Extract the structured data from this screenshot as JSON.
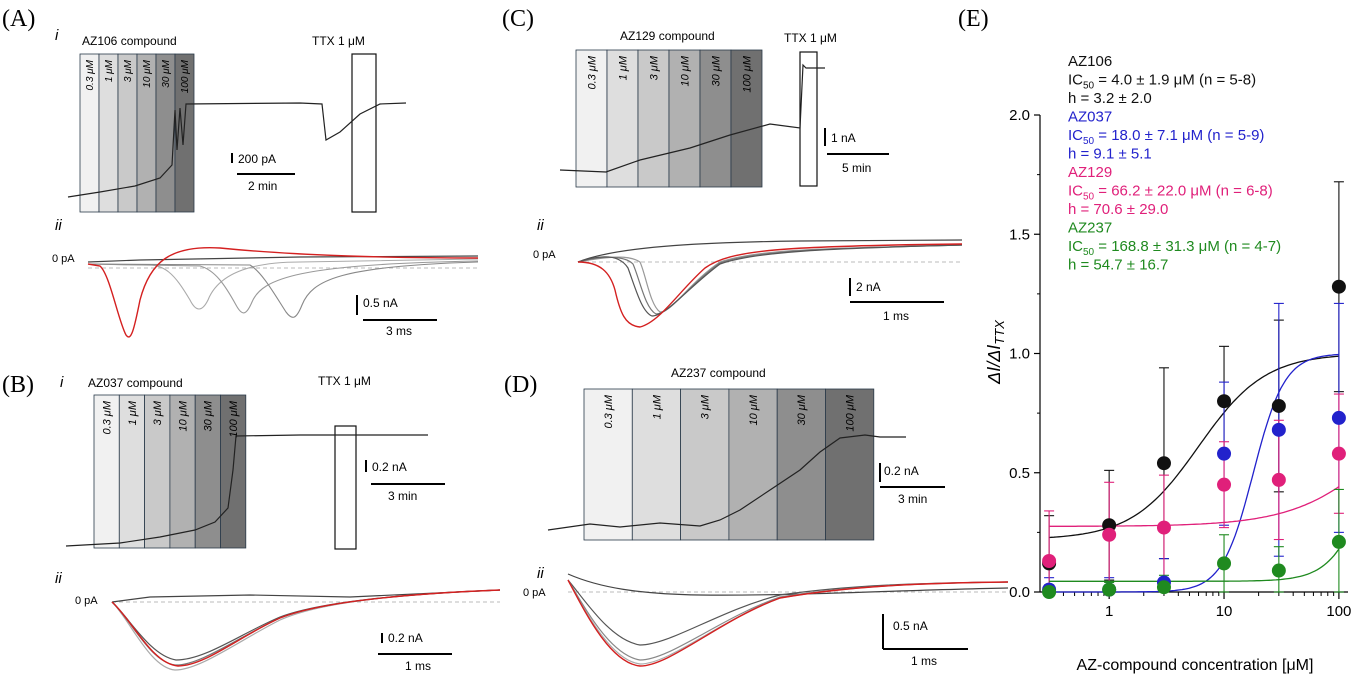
{
  "panels": {
    "A": {
      "letter": "(A)",
      "sub_i": "i",
      "sub_ii": "ii",
      "compound": "AZ106 compound",
      "ttx": "TTX 1 μM",
      "concentrations": [
        "0.3 μM",
        "1 μM",
        "3 μM",
        "10 μM",
        "30 μM",
        "100 μM"
      ],
      "scale_y": "200 pA",
      "scale_x": "2 min",
      "zero_label": "0 pA",
      "scale_y2": "0.5 nA",
      "scale_x2": "3 ms"
    },
    "B": {
      "letter": "(B)",
      "sub_i": "i",
      "sub_ii": "ii",
      "compound": "AZ037 compound",
      "ttx": "TTX 1 μM",
      "concentrations": [
        "0.3 μM",
        "1 μM",
        "3 μM",
        "10 μM",
        "30 μM",
        "100 μM"
      ],
      "scale_y": "0.2 nA",
      "scale_x": "3 min",
      "zero_label": "0 pA",
      "scale_y2": "0.2 nA",
      "scale_x2": "1 ms"
    },
    "C": {
      "letter": "(C)",
      "sub_ii": "ii",
      "compound": "AZ129 compound",
      "ttx": "TTX 1 μM",
      "concentrations": [
        "0.3 μM",
        "1 μM",
        "3 μM",
        "10 μM",
        "30 μM",
        "100 μM"
      ],
      "scale_y": "1 nA",
      "scale_x": "5 min",
      "zero_label": "0 pA",
      "scale_y2": "2 nA",
      "scale_x2": "1 ms"
    },
    "D": {
      "letter": "(D)",
      "sub_ii": "ii",
      "compound": "AZ237 compound",
      "concentrations": [
        "0.3 μM",
        "1 μM",
        "3 μM",
        "10 μM",
        "30 μM",
        "100 μM"
      ],
      "scale_y": "0.2 nA",
      "scale_x": "3 min",
      "zero_label": "0 pA",
      "scale_y2": "0.5 nA",
      "scale_x2": "1 ms"
    },
    "E": {
      "letter": "(E)"
    }
  },
  "colors": {
    "AZ106": "#111111",
    "AZ037": "#2222cc",
    "AZ129": "#e0207a",
    "AZ237": "#1f8a1f",
    "trace_red": "#d42020",
    "trace_gray": "#9a9a9a",
    "trace_dark": "#444444",
    "bar_shades": [
      "#f1f1f1",
      "#dedede",
      "#c9c9c9",
      "#b1b1b1",
      "#8e8e8e",
      "#707070"
    ]
  },
  "chart_data": {
    "type": "scatter",
    "xlabel": "AZ-compound concentration [μM]",
    "ylabel": "ΔI/ΔI_TTX",
    "xscale": "log",
    "xlim": [
      0.25,
      120
    ],
    "ylim": [
      0,
      2.0
    ],
    "xticks": [
      1,
      10,
      100
    ],
    "xtick_labels": [
      "1",
      "10",
      "100"
    ],
    "yticks": [
      0,
      0.5,
      1.0,
      1.5,
      2.0
    ],
    "ytick_labels": [
      "0.0",
      "0.5",
      "1.0",
      "1.5",
      "2.0"
    ],
    "x": [
      0.3,
      1,
      3,
      10,
      30,
      100
    ],
    "series": [
      {
        "name": "AZ106",
        "legend_lines": [
          "AZ106",
          "IC50 = 4.0 ± 1.9 μM (n = 5-8)",
          "h = 3.2 ± 2.0"
        ],
        "values": [
          0.12,
          0.28,
          0.54,
          0.8,
          0.78,
          1.28
        ],
        "errors": [
          0.2,
          0.23,
          0.4,
          0.23,
          0.36,
          0.44
        ],
        "fit": {
          "bottom": 0.22,
          "top": 1.0,
          "ic50": 6.0,
          "hill": 1.5
        }
      },
      {
        "name": "AZ037",
        "legend_lines": [
          "AZ037",
          "IC50 = 18.0 ± 7.1 μM (n = 5-9)",
          "h = 9.1 ± 5.1"
        ],
        "values": [
          0.01,
          0.01,
          0.04,
          0.58,
          0.68,
          0.73
        ],
        "errors": [
          0.05,
          0.05,
          0.1,
          0.3,
          0.53,
          0.48
        ],
        "fit": {
          "bottom": 0.0,
          "top": 1.0,
          "ic50": 18.0,
          "hill": 3.2
        }
      },
      {
        "name": "AZ129",
        "legend_lines": [
          "AZ129",
          "IC50 = 66.2 ± 22.0 μM (n = 6-8)",
          "h = 70.6 ± 29.0"
        ],
        "values": [
          0.13,
          0.24,
          0.27,
          0.45,
          0.47,
          0.58
        ],
        "errors": [
          0.21,
          0.22,
          0.22,
          0.18,
          0.25,
          0.25
        ],
        "fit": {
          "bottom": 0.275,
          "top": 1.0,
          "ic50": 300,
          "hill": 1.1
        }
      },
      {
        "name": "AZ237",
        "legend_lines": [
          "AZ237",
          "IC50 = 168.8 ± 31.3 μM (n = 4-7)",
          "h = 54.7 ± 16.7"
        ],
        "values": [
          0.0,
          0.01,
          0.02,
          0.12,
          0.09,
          0.21
        ],
        "errors": [
          0.03,
          0.03,
          0.05,
          0.12,
          0.1,
          0.22
        ],
        "fit": {
          "bottom": 0.045,
          "top": 1.0,
          "ic50": 200,
          "hill": 2.6
        }
      }
    ]
  }
}
